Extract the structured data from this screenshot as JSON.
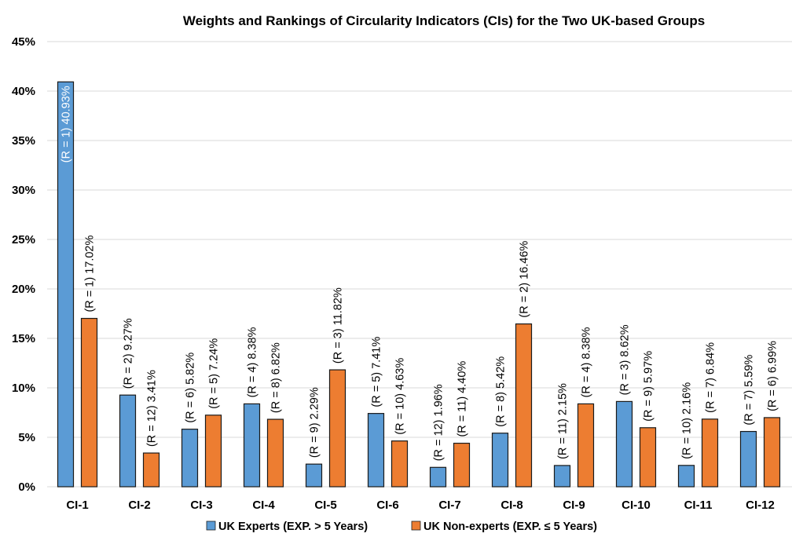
{
  "chart_data": {
    "type": "bar",
    "title": "Weights and Rankings of Circularity Indicators (CIs) for the Two UK-based Groups",
    "xlabel": "",
    "ylabel": "",
    "ylim": [
      0,
      45
    ],
    "y_ticks": [
      "0%",
      "5%",
      "10%",
      "15%",
      "20%",
      "25%",
      "30%",
      "35%",
      "40%",
      "45%"
    ],
    "grid": true,
    "legend_position": "bottom",
    "categories": [
      "CI-1",
      "CI-2",
      "CI-3",
      "CI-4",
      "CI-5",
      "CI-6",
      "CI-7",
      "CI-8",
      "CI-9",
      "CI-10",
      "CI-11",
      "CI-12"
    ],
    "series": [
      {
        "name": "UK Experts (EXP. > 5 Years)",
        "color": "#5b9bd5",
        "values": [
          40.93,
          9.27,
          5.82,
          8.38,
          2.29,
          7.41,
          1.96,
          5.42,
          2.15,
          8.62,
          2.16,
          5.59
        ],
        "labels": [
          "(R = 1) 40.93%",
          "(R = 2) 9.27%",
          "(R = 6) 5.82%",
          "(R = 4) 8.38%",
          "(R = 9) 2.29%",
          "(R = 5) 7.41%",
          "(R = 12) 1.96%",
          "(R = 8) 5.42%",
          "(R = 11) 2.15%",
          "(R = 3) 8.62%",
          "(R = 10) 2.16%",
          "(R = 7) 5.59%"
        ]
      },
      {
        "name": "UK Non-experts (EXP. ≤ 5 Years)",
        "color": "#ed7d31",
        "values": [
          17.02,
          3.41,
          7.24,
          6.82,
          11.82,
          4.63,
          4.4,
          16.46,
          8.38,
          5.97,
          6.84,
          6.99
        ],
        "labels": [
          "(R = 1) 17.02%",
          "(R = 12) 3.41%",
          "(R = 5) 7.24%",
          "(R = 8) 6.82%",
          "(R = 3) 11.82%",
          "(R = 10) 4.63%",
          "(R = 11) 4.40%",
          "(R = 2) 16.46%",
          "(R = 4) 8.38%",
          "(R = 9) 5.97%",
          "(R = 7) 6.84%",
          "(R = 6) 6.99%"
        ]
      }
    ]
  }
}
